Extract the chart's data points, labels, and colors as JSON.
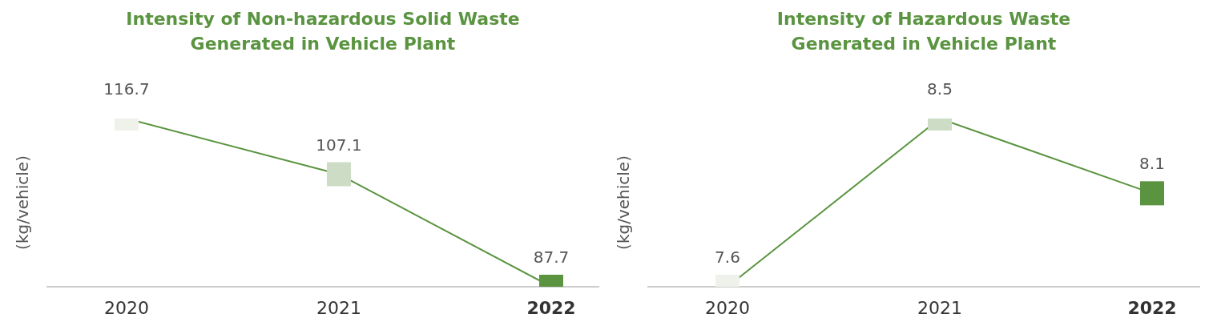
{
  "chart_data": [
    {
      "type": "line",
      "title": "Intensity of Non-hazardous Solid Waste\nGenerated in Vehicle Plant",
      "ylabel": "(kg/vehicle)",
      "categories": [
        "2020",
        "2021",
        "2022"
      ],
      "series": [
        {
          "color": "#5a9440",
          "colors": [
            "#eef2ea",
            "#cddcc4",
            "#5a9440"
          ],
          "values": [
            116.7,
            107.1,
            87.7
          ]
        }
      ],
      "marker": "square",
      "data_labels": true,
      "grid": false,
      "legend": false
    },
    {
      "type": "line",
      "title": "Intensity of Hazardous Waste\nGenerated in Vehicle Plant",
      "ylabel": "(kg/vehicle)",
      "categories": [
        "2020",
        "2021",
        "2022"
      ],
      "series": [
        {
          "color": "#5a9440",
          "colors": [
            "#eef2ea",
            "#cddcc4",
            "#5a9440"
          ],
          "values": [
            7.6,
            8.5,
            8.1
          ]
        }
      ],
      "marker": "square",
      "data_labels": true,
      "grid": false,
      "legend": false
    }
  ]
}
